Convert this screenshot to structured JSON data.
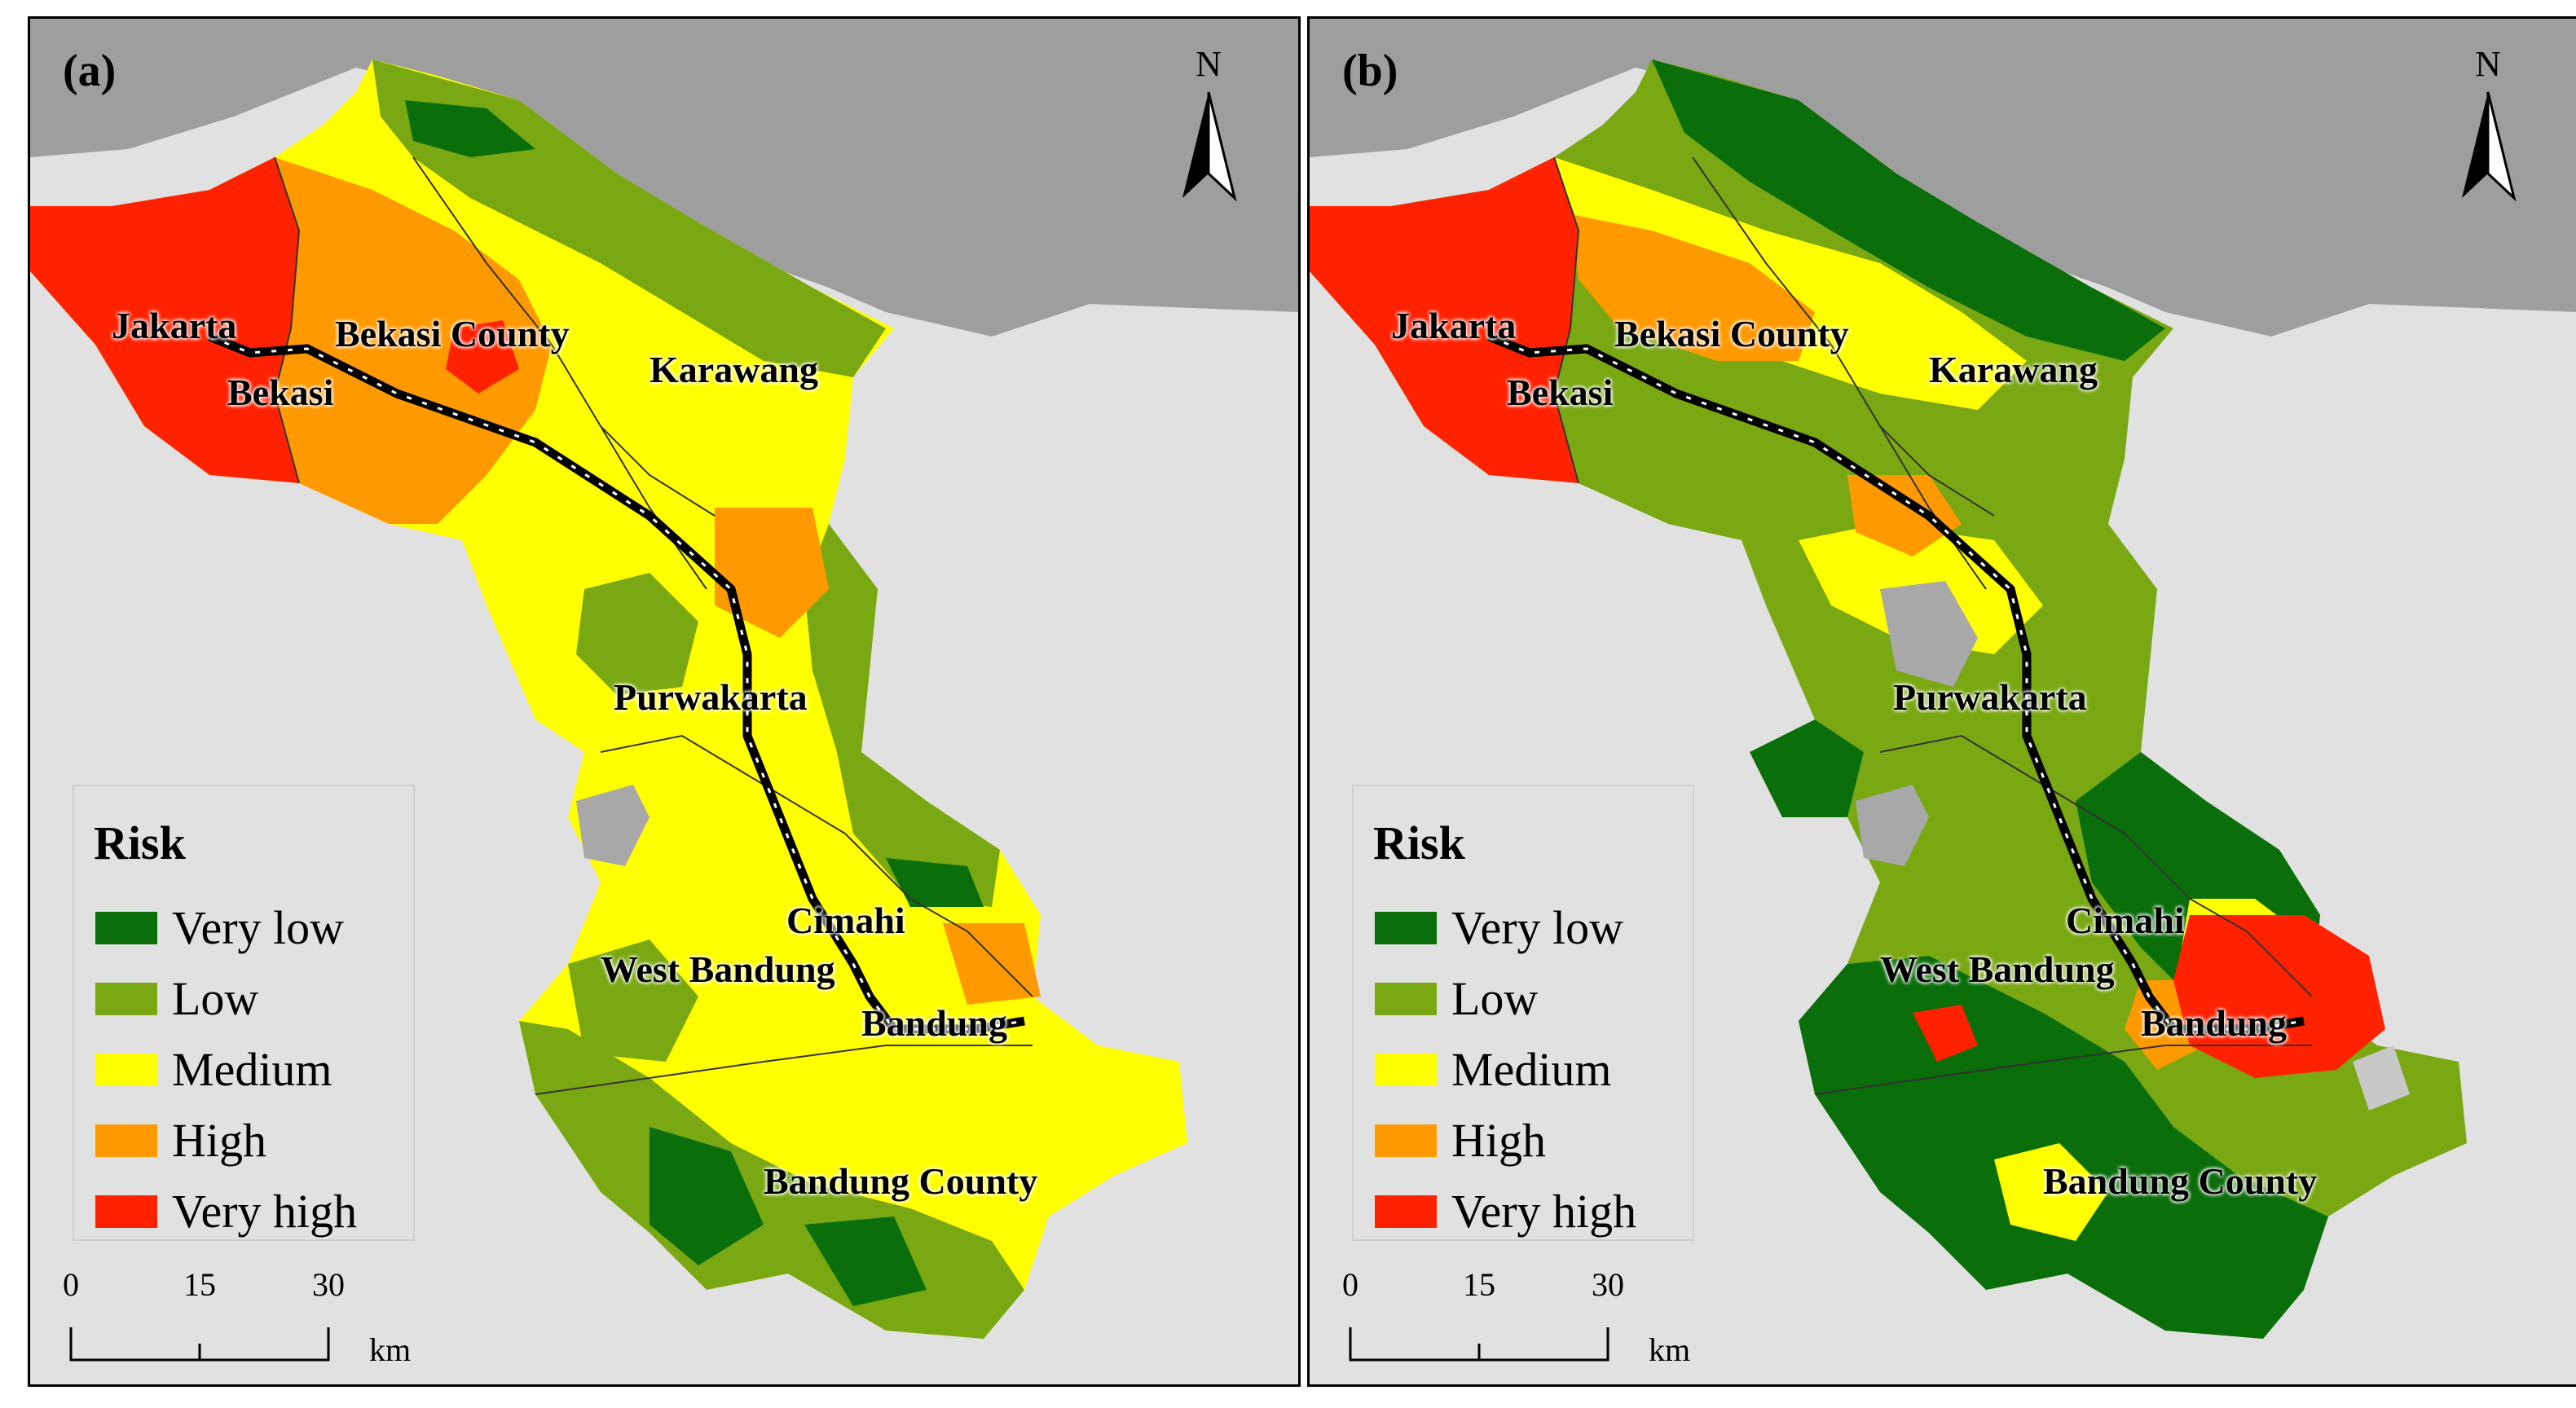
{
  "panels": [
    {
      "label": "(a)",
      "places": {
        "jakarta": "Jakarta",
        "bekasi": "Bekasi",
        "bekasi_county": "Bekasi County",
        "karawang": "Karawang",
        "purwakarta": "Purwakarta",
        "cimahi": "Cimahi",
        "west_bandung": "West Bandung",
        "bandung": "Bandung",
        "bandung_county": "Bandung County"
      }
    },
    {
      "label": "(b)",
      "places": {
        "jakarta": "Jakarta",
        "bekasi": "Bekasi",
        "bekasi_county": "Bekasi County",
        "karawang": "Karawang",
        "purwakarta": "Purwakarta",
        "cimahi": "Cimahi",
        "west_bandung": "West Bandung",
        "bandung": "Bandung",
        "bandung_county": "Bandung County"
      }
    }
  ],
  "north_label": "N",
  "legend": {
    "title": "Risk",
    "items": [
      {
        "label": "Very low",
        "color": "#0a6e0a"
      },
      {
        "label": "Low",
        "color": "#79a812"
      },
      {
        "label": "Medium",
        "color": "#ffff00"
      },
      {
        "label": "High",
        "color": "#ff9900"
      },
      {
        "label": "Very high",
        "color": "#ff2200"
      }
    ]
  },
  "scale": {
    "ticks": [
      "0",
      "15",
      "30"
    ],
    "unit": "km"
  },
  "colors": {
    "background_land": "#e1e1e1",
    "sea": "#9e9e9e",
    "water_body": "#a8a8a8",
    "railway": "#000000"
  }
}
